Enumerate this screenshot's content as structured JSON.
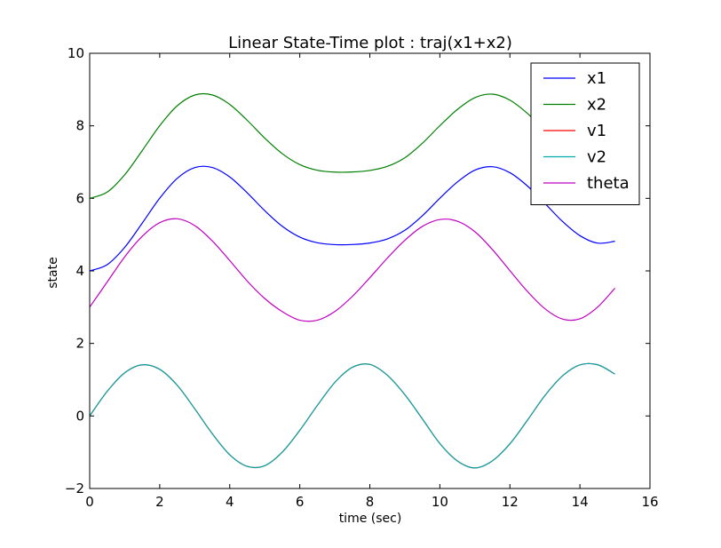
{
  "chart_data": {
    "type": "line",
    "title": "Linear State-Time plot : traj(x1+x2)",
    "xlabel": "time (sec)",
    "ylabel": "state",
    "xlim": [
      0,
      16
    ],
    "ylim": [
      -2,
      10
    ],
    "xticks": [
      0,
      2,
      4,
      6,
      8,
      10,
      12,
      14,
      16
    ],
    "yticks": [
      -2,
      0,
      2,
      4,
      6,
      8,
      10
    ],
    "legend_position": "top-right",
    "grid": false,
    "x": [
      0,
      0.5,
      1,
      1.5,
      2,
      2.5,
      3,
      3.5,
      4,
      4.5,
      5,
      5.5,
      6,
      6.5,
      7,
      7.5,
      8,
      8.5,
      9,
      9.5,
      10,
      10.5,
      11,
      11.5,
      12,
      12.5,
      13,
      13.5,
      14,
      14.5,
      15
    ],
    "series": [
      {
        "name": "x1",
        "color": "#0000ff",
        "values": [
          4.0,
          4.173,
          4.65,
          5.316,
          6.004,
          6.552,
          6.849,
          6.852,
          6.59,
          6.151,
          5.66,
          5.231,
          4.932,
          4.776,
          4.724,
          4.727,
          4.769,
          4.881,
          5.119,
          5.519,
          6.004,
          6.451,
          6.778,
          6.873,
          6.708,
          6.342,
          5.86,
          5.366,
          4.972,
          4.766,
          4.817
        ]
      },
      {
        "name": "x2",
        "color": "#008000",
        "values": [
          6.0,
          6.173,
          6.65,
          7.316,
          8.004,
          8.552,
          8.849,
          8.852,
          8.59,
          8.151,
          7.66,
          7.231,
          6.932,
          6.776,
          6.724,
          6.727,
          6.769,
          6.881,
          7.119,
          7.519,
          8.004,
          8.451,
          8.778,
          8.873,
          8.708,
          8.342,
          7.86,
          7.366,
          6.972,
          6.766,
          6.817
        ]
      },
      {
        "name": "v1",
        "color": "#ff0000",
        "values": [
          0.0,
          0.678,
          1.19,
          1.411,
          1.286,
          0.847,
          0.199,
          -0.489,
          -1.07,
          -1.39,
          -1.37,
          -0.997,
          -0.395,
          0.288,
          0.924,
          1.341,
          1.421,
          1.123,
          0.586,
          -0.081,
          -0.76,
          -1.24,
          -1.432,
          -1.237,
          -0.768,
          -0.117,
          0.562,
          1.102,
          1.408,
          1.413,
          1.156
        ]
      },
      {
        "name": "v2",
        "color": "#00aaaa",
        "values": [
          0.0,
          0.678,
          1.19,
          1.411,
          1.286,
          0.847,
          0.199,
          -0.489,
          -1.07,
          -1.39,
          -1.37,
          -0.997,
          -0.395,
          0.288,
          0.924,
          1.341,
          1.421,
          1.123,
          0.586,
          -0.081,
          -0.76,
          -1.24,
          -1.432,
          -1.237,
          -0.768,
          -0.117,
          0.562,
          1.102,
          1.408,
          1.413,
          1.156
        ]
      },
      {
        "name": "theta",
        "color": "#c000c0",
        "values": [
          3.0,
          3.694,
          4.387,
          4.953,
          5.33,
          5.437,
          5.25,
          4.829,
          4.285,
          3.719,
          3.238,
          2.877,
          2.64,
          2.64,
          2.88,
          3.296,
          3.812,
          4.352,
          4.843,
          5.226,
          5.416,
          5.371,
          5.08,
          4.589,
          4.007,
          3.435,
          2.957,
          2.672,
          2.678,
          2.997,
          3.524
        ]
      }
    ]
  }
}
